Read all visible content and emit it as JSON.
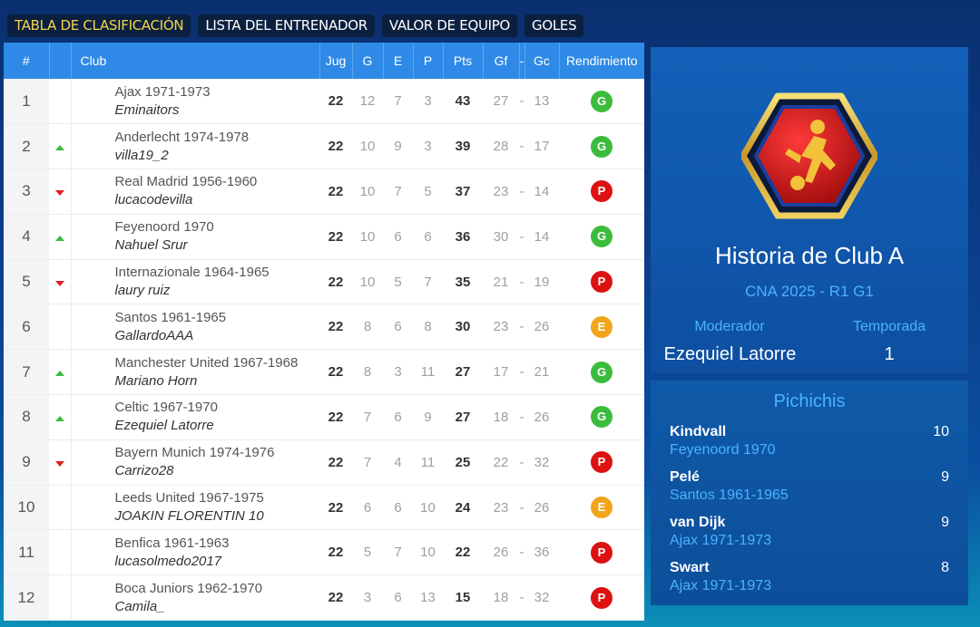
{
  "tabs": [
    {
      "label": "TABLA DE CLASIFICACIÓN",
      "active": true
    },
    {
      "label": "LISTA DEL ENTRENADOR",
      "active": false
    },
    {
      "label": "VALOR DE EQUIPO",
      "active": false
    },
    {
      "label": "GOLES",
      "active": false
    }
  ],
  "table": {
    "headers": {
      "pos": "#",
      "club": "Club",
      "jug": "Jug",
      "g": "G",
      "e": "E",
      "p": "P",
      "pts": "Pts",
      "gf": "Gf",
      "sep": "-",
      "gc": "Gc",
      "rend": "Rendimiento"
    },
    "rows": [
      {
        "pos": "1",
        "trend": "none",
        "club": "Ajax 1971-1973",
        "manager": "Eminaitors",
        "jug": "22",
        "g": "12",
        "e": "7",
        "p": "3",
        "pts": "43",
        "gf": "27",
        "sep": "-",
        "gc": "13",
        "rend": "G"
      },
      {
        "pos": "2",
        "trend": "up",
        "club": "Anderlecht 1974-1978",
        "manager": "villa19_2",
        "jug": "22",
        "g": "10",
        "e": "9",
        "p": "3",
        "pts": "39",
        "gf": "28",
        "sep": "-",
        "gc": "17",
        "rend": "G"
      },
      {
        "pos": "3",
        "trend": "down",
        "club": "Real Madrid 1956-1960",
        "manager": "lucacodevilla",
        "jug": "22",
        "g": "10",
        "e": "7",
        "p": "5",
        "pts": "37",
        "gf": "23",
        "sep": "-",
        "gc": "14",
        "rend": "P"
      },
      {
        "pos": "4",
        "trend": "up",
        "club": "Feyenoord 1970",
        "manager": "Nahuel Srur",
        "jug": "22",
        "g": "10",
        "e": "6",
        "p": "6",
        "pts": "36",
        "gf": "30",
        "sep": "-",
        "gc": "14",
        "rend": "G"
      },
      {
        "pos": "5",
        "trend": "down",
        "club": "Internazionale 1964-1965",
        "manager": "laury ruiz",
        "jug": "22",
        "g": "10",
        "e": "5",
        "p": "7",
        "pts": "35",
        "gf": "21",
        "sep": "-",
        "gc": "19",
        "rend": "P"
      },
      {
        "pos": "6",
        "trend": "none",
        "club": "Santos 1961-1965",
        "manager": "GallardoAAA",
        "jug": "22",
        "g": "8",
        "e": "6",
        "p": "8",
        "pts": "30",
        "gf": "23",
        "sep": "-",
        "gc": "26",
        "rend": "E"
      },
      {
        "pos": "7",
        "trend": "up",
        "club": "Manchester United 1967-1968",
        "manager": "Mariano Horn",
        "jug": "22",
        "g": "8",
        "e": "3",
        "p": "11",
        "pts": "27",
        "gf": "17",
        "sep": "-",
        "gc": "21",
        "rend": "G"
      },
      {
        "pos": "8",
        "trend": "up",
        "club": "Celtic 1967-1970",
        "manager": "Ezequiel Latorre",
        "jug": "22",
        "g": "7",
        "e": "6",
        "p": "9",
        "pts": "27",
        "gf": "18",
        "sep": "-",
        "gc": "26",
        "rend": "G"
      },
      {
        "pos": "9",
        "trend": "down",
        "club": "Bayern Munich 1974-1976",
        "manager": "Carrizo28",
        "jug": "22",
        "g": "7",
        "e": "4",
        "p": "11",
        "pts": "25",
        "gf": "22",
        "sep": "-",
        "gc": "32",
        "rend": "P"
      },
      {
        "pos": "10",
        "trend": "none",
        "club": "Leeds United 1967-1975",
        "manager": "JOAKIN FLORENTIN 10",
        "jug": "22",
        "g": "6",
        "e": "6",
        "p": "10",
        "pts": "24",
        "gf": "23",
        "sep": "-",
        "gc": "26",
        "rend": "E"
      },
      {
        "pos": "11",
        "trend": "none",
        "club": "Benfica 1961-1963",
        "manager": "lucasolmedo2017",
        "jug": "22",
        "g": "5",
        "e": "7",
        "p": "10",
        "pts": "22",
        "gf": "26",
        "sep": "-",
        "gc": "36",
        "rend": "P"
      },
      {
        "pos": "12",
        "trend": "none",
        "club": "Boca Juniors 1962-1970",
        "manager": "Camila_",
        "jug": "22",
        "g": "3",
        "e": "6",
        "p": "13",
        "pts": "15",
        "gf": "18",
        "sep": "-",
        "gc": "32",
        "rend": "P"
      }
    ]
  },
  "rend_colors": {
    "G": "#3cbc3c",
    "P": "#dd1111",
    "E": "#f2a51a"
  },
  "club_panel": {
    "title": "Historia de Club A",
    "subtitle": "CNA 2025 - R1 G1",
    "moderator_label": "Moderador",
    "moderator": "Ezequiel Latorre",
    "season_label": "Temporada",
    "season": "1",
    "logo_icon": "soccer-player-icon"
  },
  "scorers": {
    "title": "Pichichis",
    "items": [
      {
        "name": "Kindvall",
        "club": "Feyenoord 1970",
        "goals": "10"
      },
      {
        "name": "Pelé",
        "club": "Santos 1961-1965",
        "goals": "9"
      },
      {
        "name": "van Dijk",
        "club": "Ajax 1971-1973",
        "goals": "9"
      },
      {
        "name": "Swart",
        "club": "Ajax 1971-1973",
        "goals": "8"
      }
    ]
  }
}
